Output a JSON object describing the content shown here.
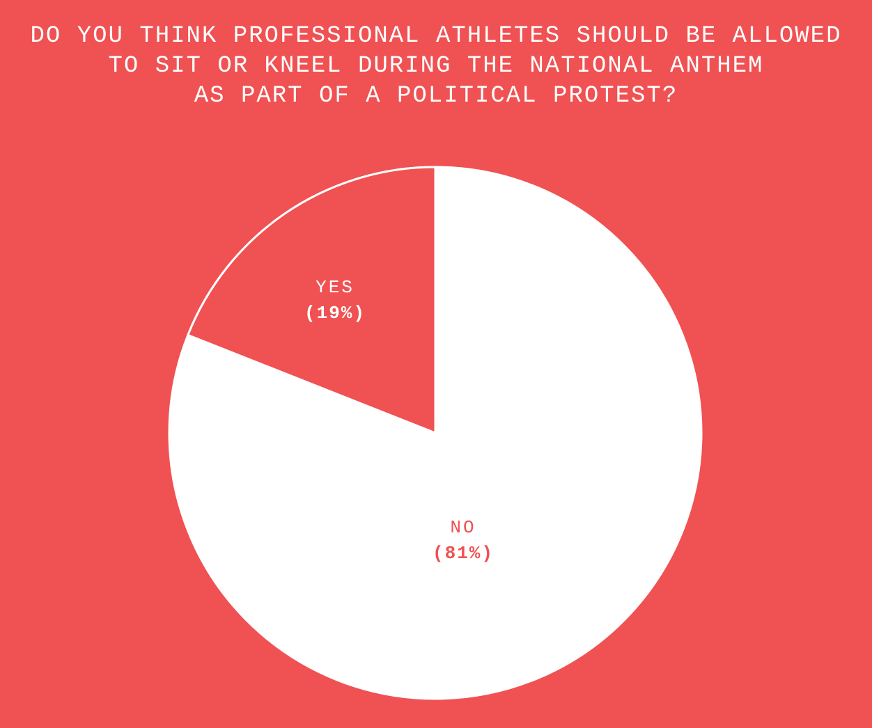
{
  "title": {
    "line1": "DO YOU THINK PROFESSIONAL ATHLETES SHOULD BE ALLOWED",
    "line2": "TO SIT OR KNEEL DURING THE NATIONAL ANTHEM",
    "line3": "AS PART OF A POLITICAL PROTEST?"
  },
  "chart_data": {
    "type": "pie",
    "title": "DO YOU THINK PROFESSIONAL ATHLETES SHOULD BE ALLOWED TO SIT OR KNEEL DURING THE NATIONAL ANTHEM AS PART OF A POLITICAL PROTEST?",
    "slices": [
      {
        "label": "YES",
        "value": 19,
        "display": "(19%)",
        "color": "#F05152",
        "text_color": "#FFFFFF"
      },
      {
        "label": "NO",
        "value": 81,
        "display": "(81%)",
        "color": "#FFFFFF",
        "text_color": "#F05152"
      }
    ],
    "start_angle": "12-oclock",
    "yes_slice_direction": "counterclockwise",
    "outline_color": "#FFFFFF",
    "background_color": "#F05152",
    "legend": "none",
    "labels_inside_slices": true
  }
}
